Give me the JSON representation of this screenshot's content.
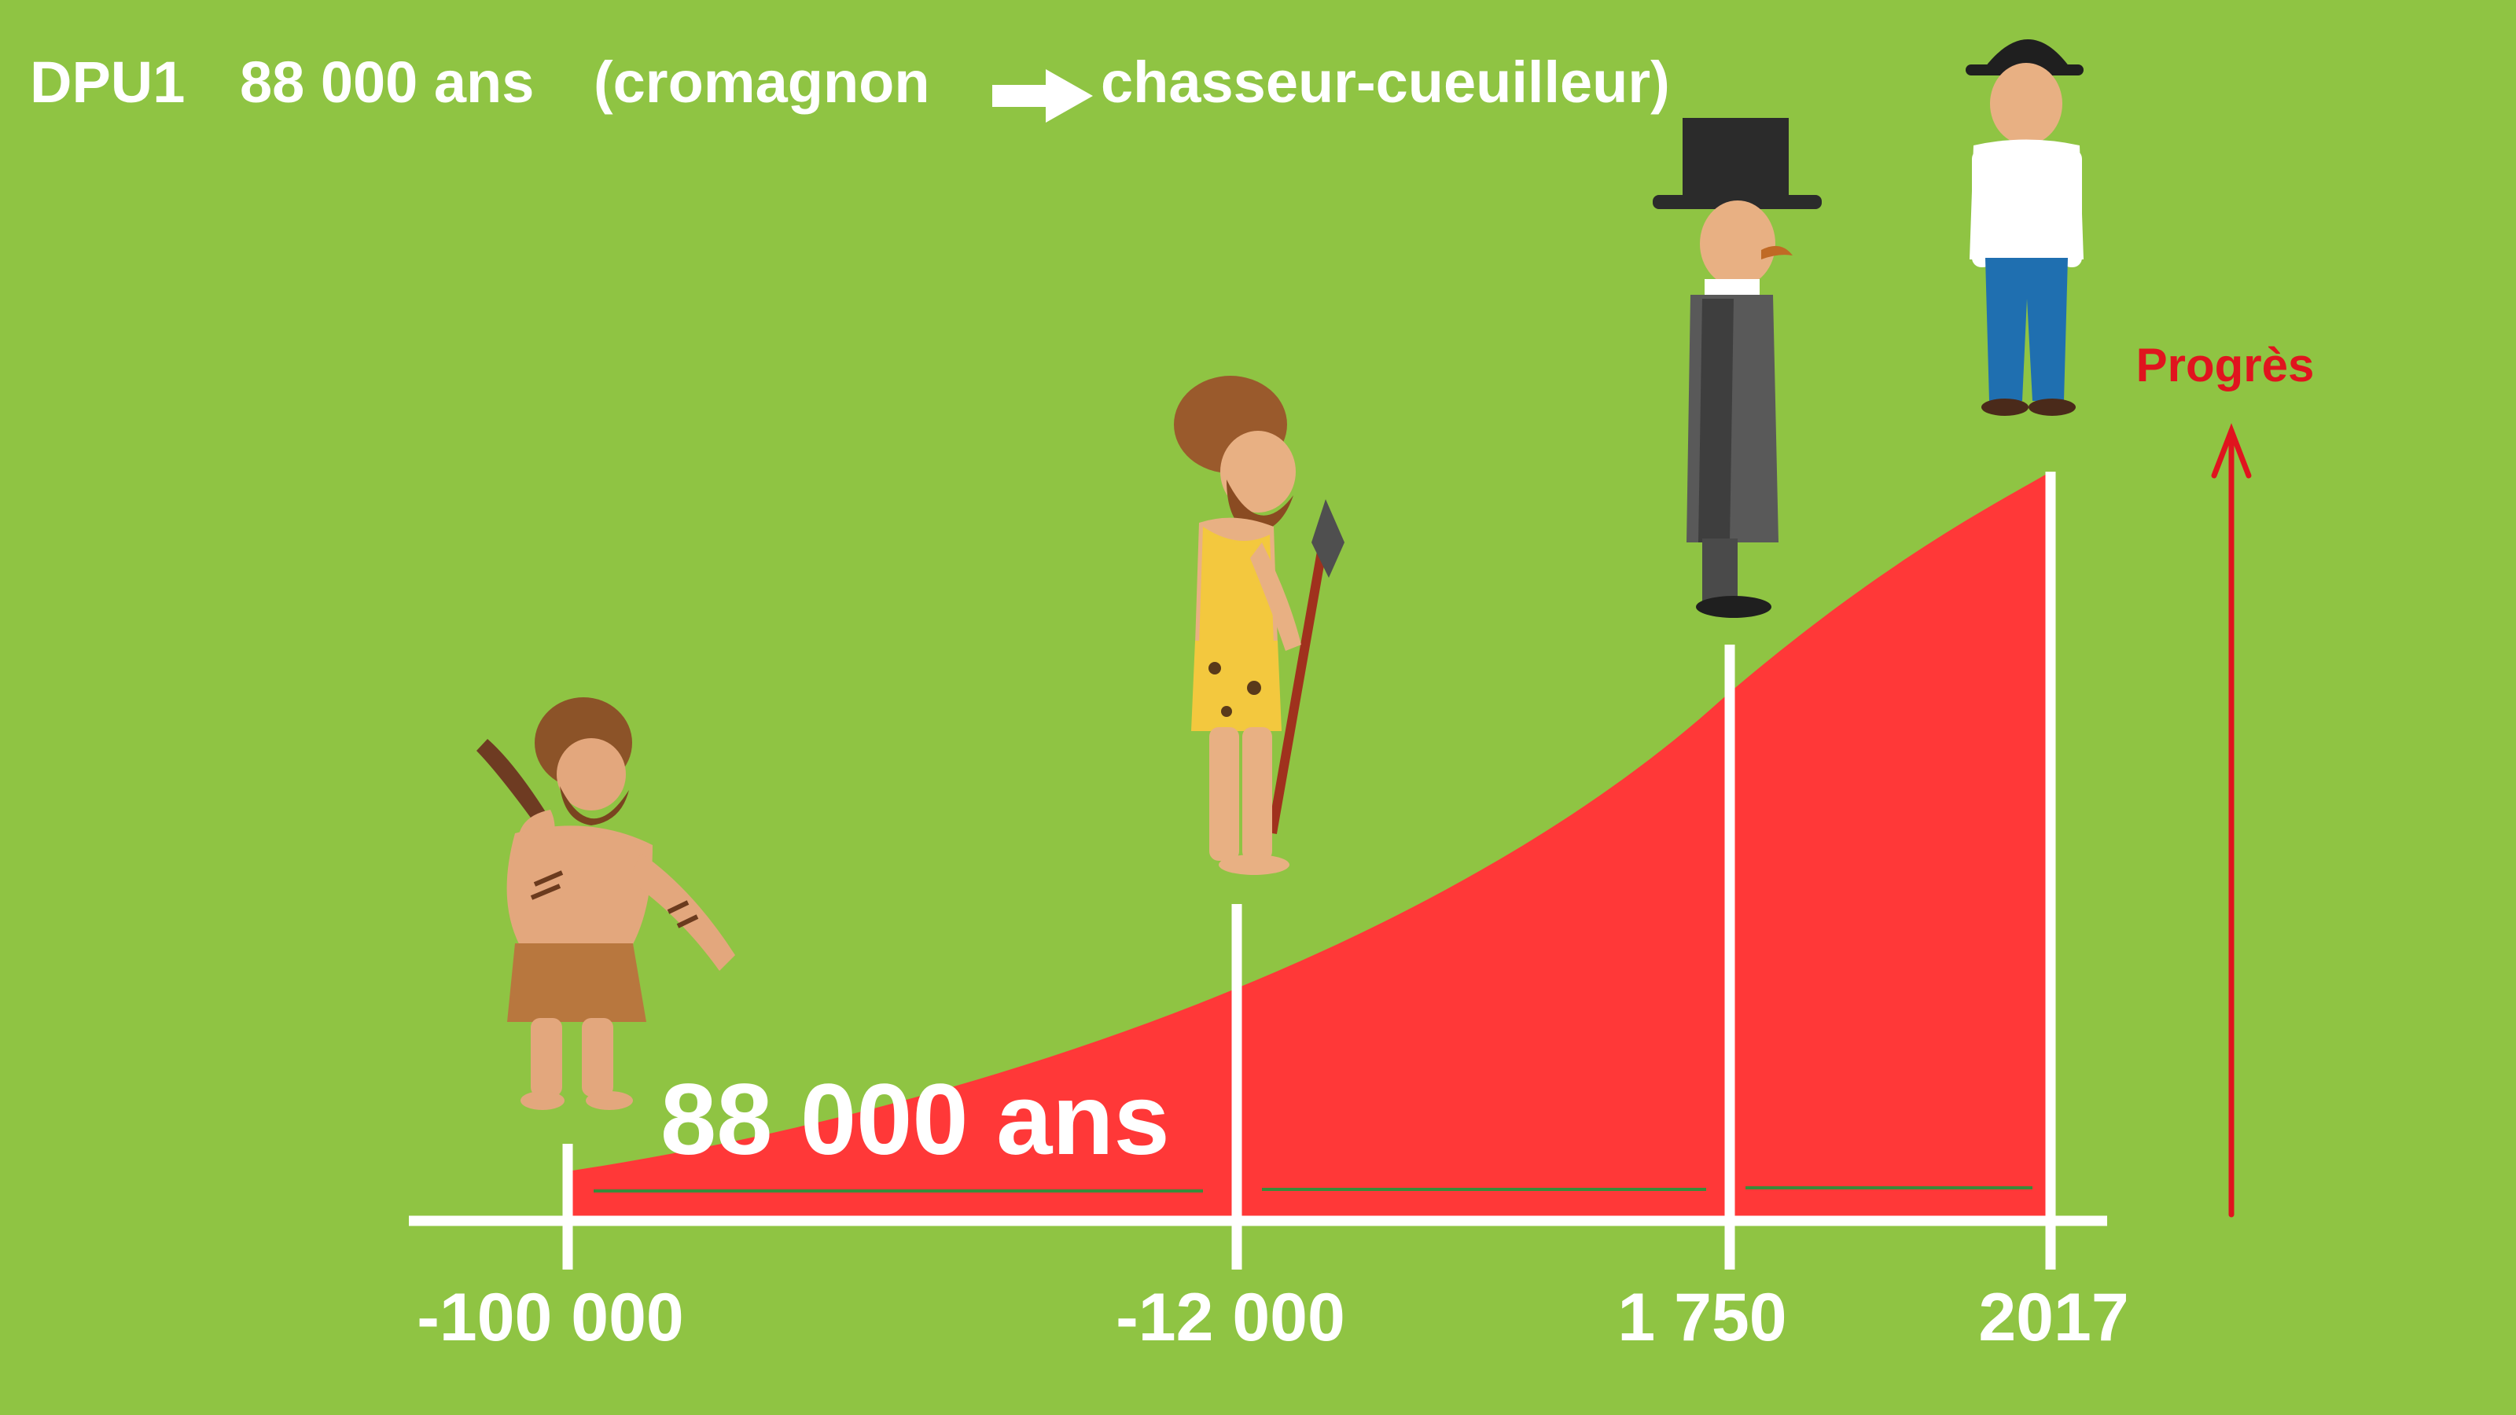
{
  "header": {
    "prefix": "DPU1",
    "duration": "88 000 ans",
    "from": "(cromagnon",
    "to": "chasseur-cueuilleur)"
  },
  "progress_label": "Progrès",
  "span_label": "88 000 ans",
  "timeline": {
    "ticks": [
      "-100 000",
      "-12 000",
      "1 750",
      "2017"
    ]
  },
  "figures": [
    {
      "name": "caveman-with-club",
      "era": "-100 000"
    },
    {
      "name": "hunter-gatherer-with-spear",
      "era": "-12 000"
    },
    {
      "name": "gentleman-top-hat",
      "era": "1 750"
    },
    {
      "name": "modern-man-bowler-hat",
      "era": "2017"
    }
  ],
  "colors": {
    "background": "#8fc443",
    "area": "#ff3838",
    "axis": "#ffffff",
    "progress": "#e0141e"
  }
}
